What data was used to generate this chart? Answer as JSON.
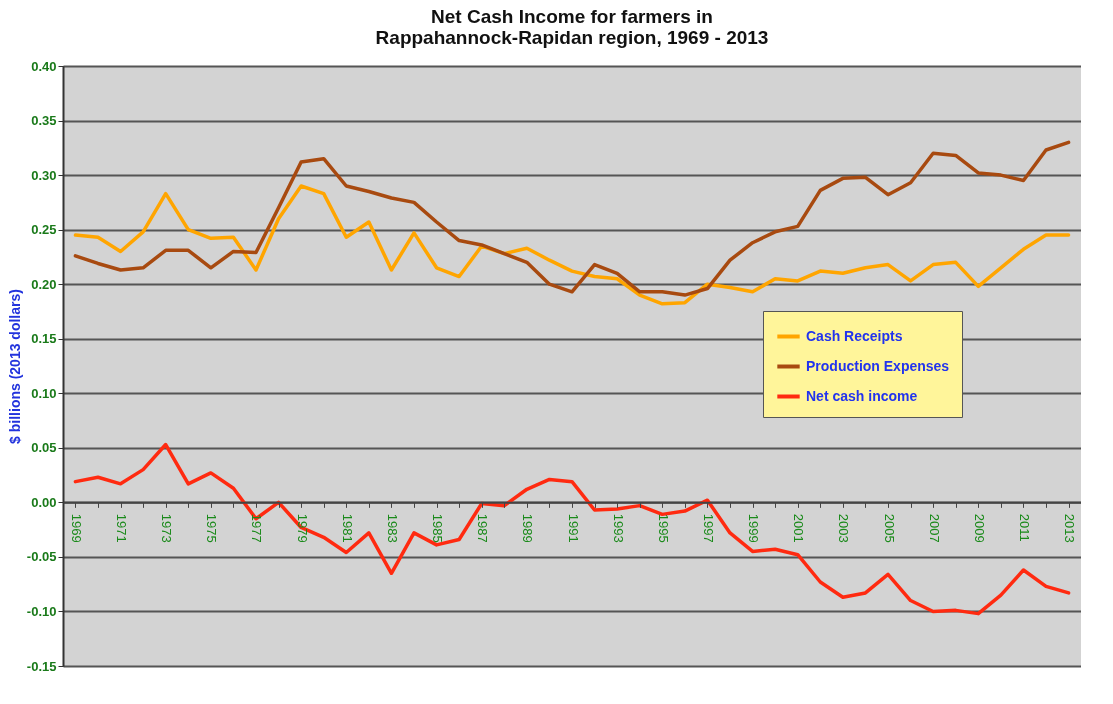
{
  "chart_data": {
    "type": "line",
    "title": "Net Cash Income for farmers in Rappahannock-Rapidan region, 1969 - 2013",
    "ylabel": "$ billions (2013 dollars)",
    "categories": [
      "1969",
      null,
      "1971",
      null,
      "1973",
      null,
      "1975",
      null,
      "1977",
      null,
      "1979",
      null,
      "1981",
      null,
      "1983",
      null,
      "1985",
      null,
      "1987",
      null,
      "1989",
      null,
      "1991",
      null,
      "1993",
      null,
      "1995",
      null,
      "1997",
      null,
      "1999",
      null,
      "2001",
      null,
      "2003",
      null,
      "2005",
      null,
      "2007",
      null,
      "2009",
      null,
      "2011",
      null,
      "2013"
    ],
    "series": [
      {
        "name": "Cash Receipts",
        "color": "#ffa500",
        "values": [
          0.245,
          0.243,
          0.23,
          0.248,
          0.283,
          0.25,
          0.242,
          0.243,
          0.213,
          0.26,
          0.29,
          0.283,
          0.243,
          0.257,
          0.213,
          0.247,
          0.215,
          0.207,
          0.235,
          0.228,
          0.233,
          0.222,
          0.212,
          0.207,
          0.205,
          0.19,
          0.182,
          0.183,
          0.2,
          0.197,
          0.193,
          0.205,
          0.203,
          0.212,
          0.21,
          0.215,
          0.218,
          0.203,
          0.218,
          0.22,
          0.198,
          0.215,
          0.232,
          0.245,
          0.245
        ]
      },
      {
        "name": "Production Expenses",
        "color": "#a84a10",
        "values": [
          0.226,
          0.219,
          0.213,
          0.215,
          0.231,
          0.231,
          0.215,
          0.23,
          0.229,
          0.27,
          0.312,
          0.315,
          0.29,
          0.285,
          0.279,
          0.275,
          0.257,
          0.24,
          0.236,
          0.228,
          0.22,
          0.2,
          0.193,
          0.218,
          0.21,
          0.193,
          0.193,
          0.19,
          0.196,
          0.222,
          0.238,
          0.248,
          0.253,
          0.286,
          0.297,
          0.298,
          0.282,
          0.293,
          0.32,
          0.318,
          0.302,
          0.3,
          0.295,
          0.323,
          0.33
        ]
      },
      {
        "name": "Net cash income",
        "color": "#ff2a10",
        "values": [
          0.019,
          0.023,
          0.017,
          0.03,
          0.053,
          0.017,
          0.027,
          0.013,
          -0.015,
          0,
          -0.023,
          -0.032,
          -0.046,
          -0.028,
          -0.065,
          -0.028,
          -0.039,
          -0.034,
          -0.001,
          -0.003,
          0.012,
          0.021,
          0.019,
          -0.007,
          -0.006,
          -0.003,
          -0.011,
          -0.008,
          0.002,
          -0.028,
          -0.045,
          -0.043,
          -0.048,
          -0.073,
          -0.087,
          -0.083,
          -0.066,
          -0.09,
          -0.1,
          -0.099,
          -0.102,
          -0.085,
          -0.062,
          -0.077,
          -0.083
        ]
      }
    ],
    "ylim": [
      -0.15,
      0.4
    ],
    "yticks": [
      {
        "value": -0.15,
        "label": "-0.15"
      },
      {
        "value": -0.1,
        "label": "-0.10"
      },
      {
        "value": -0.05,
        "label": "-0.05"
      },
      {
        "value": 0,
        "label": "0.00"
      },
      {
        "value": 0.05,
        "label": "0.05"
      },
      {
        "value": 0.1,
        "label": "0.10"
      },
      {
        "value": 0.15,
        "label": "0.15"
      },
      {
        "value": 0.2,
        "label": "0.20"
      },
      {
        "value": 0.25,
        "label": "0.25"
      },
      {
        "value": 0.3,
        "label": "0.30"
      },
      {
        "value": 0.35,
        "label": "0.35"
      },
      {
        "value": 0.4,
        "label": "0.40"
      }
    ],
    "grid": "y",
    "legend": "right",
    "line_style": "solid",
    "marker": "none"
  }
}
